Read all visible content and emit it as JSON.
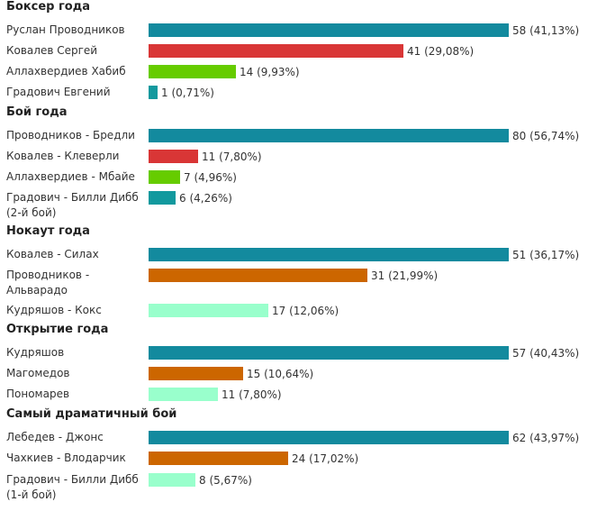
{
  "chart_data": {
    "type": "bar",
    "orientation": "horizontal",
    "sections": [
      {
        "title": "Боксер года",
        "items": [
          {
            "label": "Руслан Проводников",
            "votes": 58,
            "percent": "41,13%",
            "color": "#138a9e"
          },
          {
            "label": "Ковалев Сергей",
            "votes": 41,
            "percent": "29,08%",
            "color": "#d93636"
          },
          {
            "label": "Аллахвердиев Хабиб",
            "votes": 14,
            "percent": "9,93%",
            "color": "#66cc00"
          },
          {
            "label": "Градович Евгений",
            "votes": 1,
            "percent": "0,71%",
            "color": "#12999e"
          }
        ]
      },
      {
        "title": "Бой года",
        "items": [
          {
            "label": "Проводников - Бредли",
            "votes": 80,
            "percent": "56,74%",
            "color": "#138a9e"
          },
          {
            "label": "Ковалев - Клеверли",
            "votes": 11,
            "percent": "7,80%",
            "color": "#d93636"
          },
          {
            "label": "Аллахвердиев - Мбайе",
            "votes": 7,
            "percent": "4,96%",
            "color": "#66cc00"
          },
          {
            "label": "Градович - Билли Дибб (2-й бой)",
            "votes": 6,
            "percent": "4,26%",
            "color": "#12999e"
          }
        ]
      },
      {
        "title": "Нокаут года",
        "items": [
          {
            "label": "Ковалев - Силах",
            "votes": 51,
            "percent": "36,17%",
            "color": "#138a9e"
          },
          {
            "label": "Проводников - Альварадо",
            "votes": 31,
            "percent": "21,99%",
            "color": "#cc6600"
          },
          {
            "label": "Кудряшов - Кокс",
            "votes": 17,
            "percent": "12,06%",
            "color": "#99ffcc"
          }
        ]
      },
      {
        "title": "Открытие года",
        "items": [
          {
            "label": "Кудряшов",
            "votes": 57,
            "percent": "40,43%",
            "color": "#138a9e"
          },
          {
            "label": "Магомедов",
            "votes": 15,
            "percent": "10,64%",
            "color": "#cc6600"
          },
          {
            "label": "Пономарев",
            "votes": 11,
            "percent": "7,80%",
            "color": "#99ffcc"
          }
        ]
      },
      {
        "title": "Самый драматичный бой",
        "items": [
          {
            "label": "Лебедев - Джонс",
            "votes": 62,
            "percent": "43,97%",
            "color": "#138a9e"
          },
          {
            "label": "Чахкиев - Влодарчик",
            "votes": 24,
            "percent": "17,02%",
            "color": "#cc6600"
          },
          {
            "label": "Градович - Билли Дибб (1-й бой)",
            "votes": 8,
            "percent": "5,67%",
            "color": "#99ffcc"
          }
        ]
      }
    ]
  }
}
